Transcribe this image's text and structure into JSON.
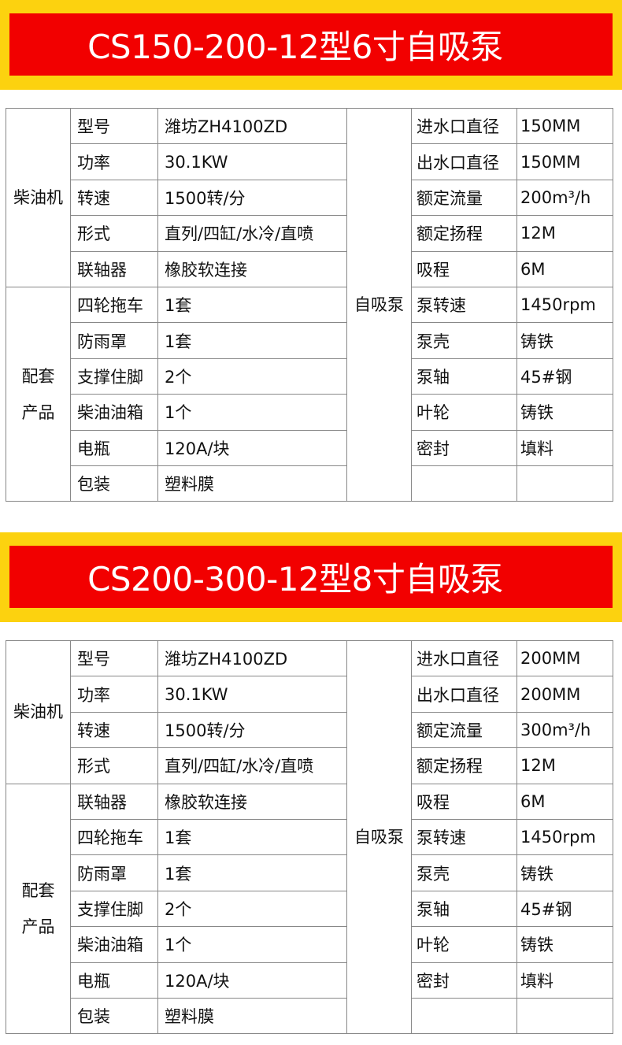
{
  "colors": {
    "banner_outer": "#fcd20f",
    "banner_inner": "#f20000",
    "title_text": "#ffffff"
  },
  "sections": [
    {
      "title": "CS150-200-12型6寸自吸泵",
      "engine_label": "柴油机",
      "engine_rows": [
        {
          "label": "型号",
          "value": "潍坊ZH4100ZD"
        },
        {
          "label": "功率",
          "value": "30.1KW"
        },
        {
          "label": "转速",
          "value": "1500转/分"
        },
        {
          "label": "形式",
          "value": "直列/四缸/水冷/直喷"
        },
        {
          "label": "联轴器",
          "value": "橡胶软连接"
        }
      ],
      "accessory_label": "配套产品",
      "accessory_rows": [
        {
          "label": "四轮拖车",
          "value": "1套"
        },
        {
          "label": "防雨罩",
          "value": "1套"
        },
        {
          "label": "支撑住脚",
          "value": "2个"
        },
        {
          "label": "柴油油箱",
          "value": "1个"
        },
        {
          "label": "电瓶",
          "value": "120A/块"
        },
        {
          "label": "包装",
          "value": "塑料膜"
        }
      ],
      "pump_label": "自吸泵",
      "pump_rows": [
        {
          "label": "进水口直径",
          "value": "150MM"
        },
        {
          "label": "出水口直径",
          "value": "150MM"
        },
        {
          "label": "额定流量",
          "value": "200m³/h"
        },
        {
          "label": "额定扬程",
          "value": "12M"
        },
        {
          "label": "吸程",
          "value": "6M"
        },
        {
          "label": "泵转速",
          "value": "1450rpm"
        },
        {
          "label": "泵壳",
          "value": "铸铁"
        },
        {
          "label": "泵轴",
          "value": "45#钢"
        },
        {
          "label": "叶轮",
          "value": "铸铁"
        },
        {
          "label": "密封",
          "value": "填料"
        },
        {
          "label": "",
          "value": ""
        }
      ]
    },
    {
      "title": "CS200-300-12型8寸自吸泵",
      "engine_label": "柴油机",
      "engine_rows": [
        {
          "label": "型号",
          "value": "潍坊ZH4100ZD"
        },
        {
          "label": "功率",
          "value": "30.1KW"
        },
        {
          "label": "转速",
          "value": "1500转/分"
        },
        {
          "label": "形式",
          "value": "直列/四缸/水冷/直喷"
        }
      ],
      "accessory_label": "配套产品",
      "accessory_rows": [
        {
          "label": "联轴器",
          "value": "橡胶软连接"
        },
        {
          "label": "四轮拖车",
          "value": "1套"
        },
        {
          "label": "防雨罩",
          "value": "1套"
        },
        {
          "label": "支撑住脚",
          "value": "2个"
        },
        {
          "label": "柴油油箱",
          "value": "1个"
        },
        {
          "label": "电瓶",
          "value": "120A/块"
        },
        {
          "label": "包装",
          "value": "塑料膜"
        }
      ],
      "pump_label": "自吸泵",
      "pump_rows": [
        {
          "label": "进水口直径",
          "value": "200MM"
        },
        {
          "label": "出水口直径",
          "value": "200MM"
        },
        {
          "label": "额定流量",
          "value": "300m³/h"
        },
        {
          "label": "额定扬程",
          "value": "12M"
        },
        {
          "label": "吸程",
          "value": "6M"
        },
        {
          "label": "泵转速",
          "value": "1450rpm"
        },
        {
          "label": "泵壳",
          "value": "铸铁"
        },
        {
          "label": "泵轴",
          "value": "45#钢"
        },
        {
          "label": "叶轮",
          "value": "铸铁"
        },
        {
          "label": "密封",
          "value": "填料"
        },
        {
          "label": "",
          "value": ""
        }
      ]
    }
  ]
}
